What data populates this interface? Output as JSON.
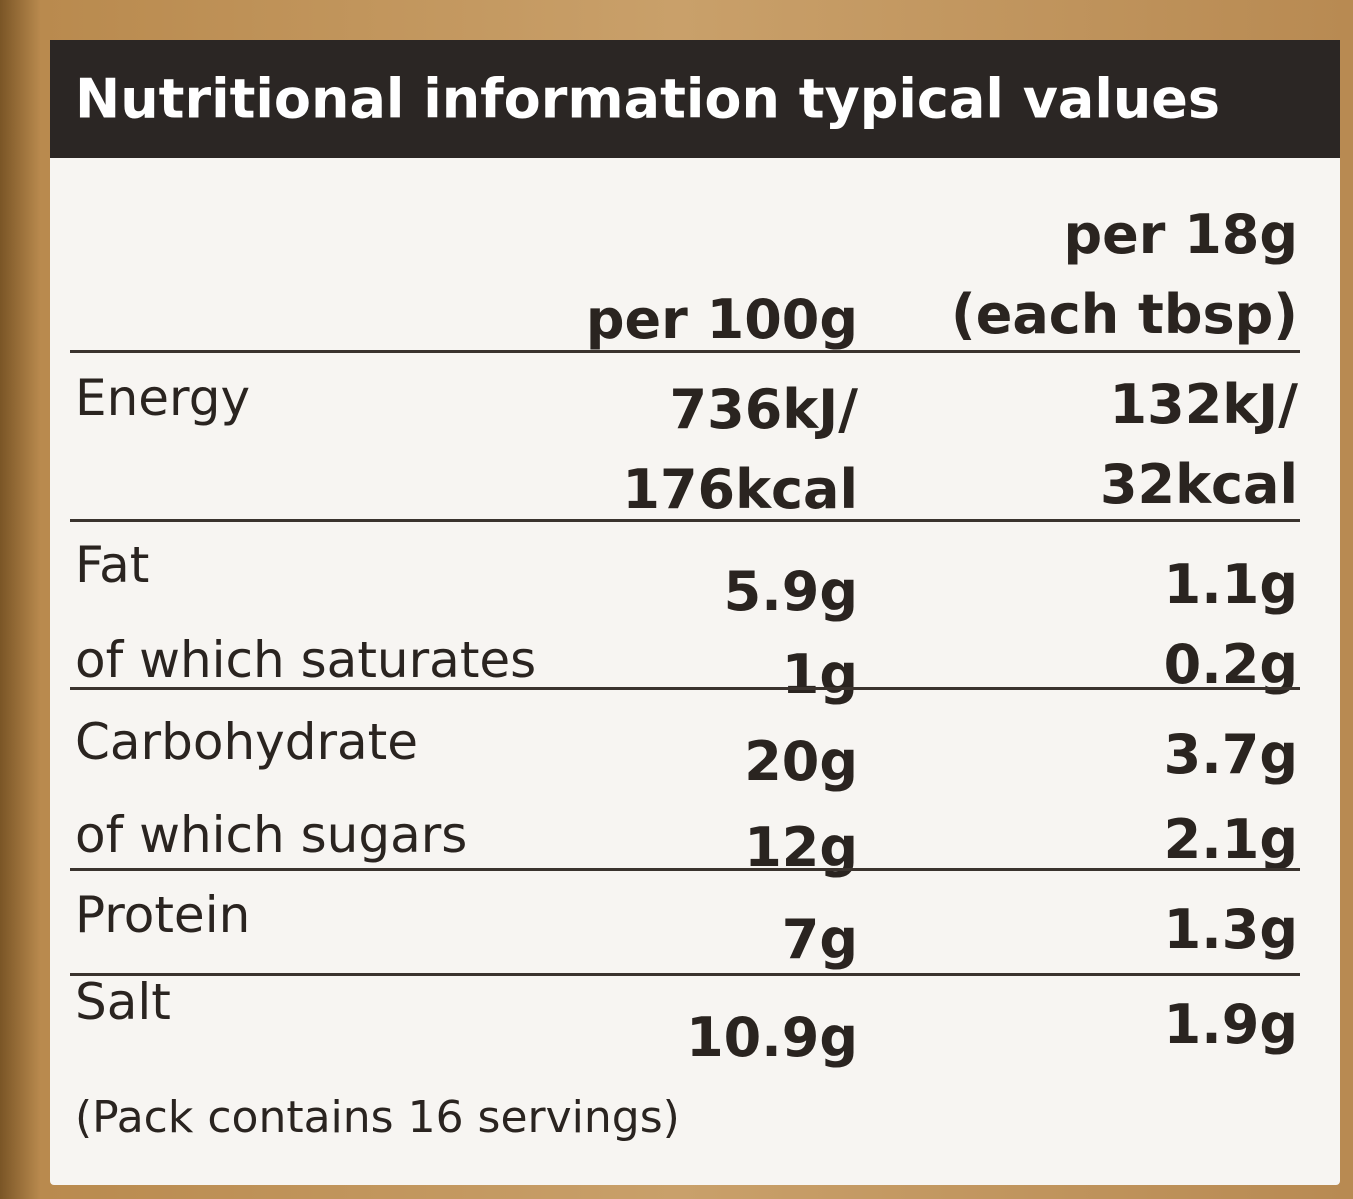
{
  "title": "Nutritional information typical values",
  "columns": [
    [
      "per 100g"
    ],
    [
      "per 18g",
      "(each tbsp)"
    ]
  ],
  "rows": [
    {
      "label": "Energy",
      "per_100g": [
        "736kJ/",
        "176kcal"
      ],
      "per_18g": [
        "132kJ/",
        "32kcal"
      ]
    },
    {
      "label": "Fat",
      "per_100g": [
        "5.9g"
      ],
      "per_18g": [
        "1.1g"
      ]
    },
    {
      "label": "of which saturates",
      "per_100g": [
        "1g"
      ],
      "per_18g": [
        "0.2g"
      ]
    },
    {
      "label": "Carbohydrate",
      "per_100g": [
        "20g"
      ],
      "per_18g": [
        "3.7g"
      ]
    },
    {
      "label": "of which sugars",
      "per_100g": [
        "12g"
      ],
      "per_18g": [
        "2.1g"
      ]
    },
    {
      "label": "Protein",
      "per_100g": [
        "7g"
      ],
      "per_18g": [
        "1.3g"
      ]
    },
    {
      "label": "Salt",
      "per_100g": [
        "10.9g"
      ],
      "per_18g": [
        "1.9g"
      ]
    }
  ],
  "footnote": "(Pack contains 16 servings)"
}
